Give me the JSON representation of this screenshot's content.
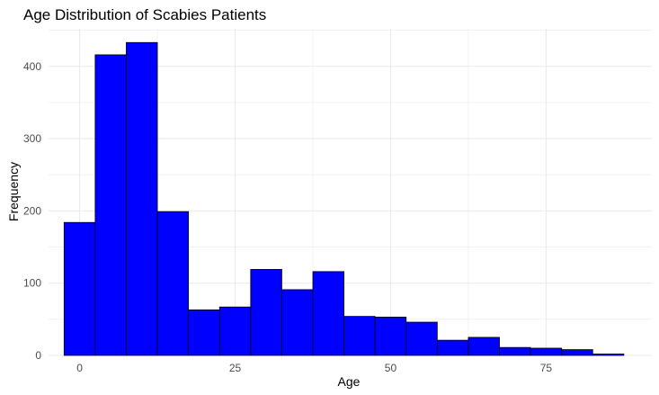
{
  "chart_data": {
    "type": "bar",
    "title": "Age Distribution of Scabies Patients",
    "xlabel": "Age",
    "ylabel": "Frequency",
    "xlim": [
      -5,
      92
    ],
    "ylim": [
      0,
      452
    ],
    "x_ticks": [
      0,
      25,
      50,
      75
    ],
    "y_ticks": [
      0,
      100,
      200,
      300,
      400
    ],
    "bin_width": 5,
    "bins": [
      {
        "start": -2.5,
        "end": 2.5,
        "count": 184
      },
      {
        "start": 2.5,
        "end": 7.5,
        "count": 416
      },
      {
        "start": 7.5,
        "end": 12.5,
        "count": 433
      },
      {
        "start": 12.5,
        "end": 17.5,
        "count": 199
      },
      {
        "start": 17.5,
        "end": 22.5,
        "count": 63
      },
      {
        "start": 22.5,
        "end": 27.5,
        "count": 67
      },
      {
        "start": 27.5,
        "end": 32.5,
        "count": 119
      },
      {
        "start": 32.5,
        "end": 37.5,
        "count": 91
      },
      {
        "start": 37.5,
        "end": 42.5,
        "count": 116
      },
      {
        "start": 42.5,
        "end": 47.5,
        "count": 54
      },
      {
        "start": 47.5,
        "end": 52.5,
        "count": 53
      },
      {
        "start": 52.5,
        "end": 57.5,
        "count": 46
      },
      {
        "start": 57.5,
        "end": 62.5,
        "count": 21
      },
      {
        "start": 62.5,
        "end": 67.5,
        "count": 25
      },
      {
        "start": 67.5,
        "end": 72.5,
        "count": 11
      },
      {
        "start": 72.5,
        "end": 77.5,
        "count": 10
      },
      {
        "start": 77.5,
        "end": 82.5,
        "count": 8
      },
      {
        "start": 82.5,
        "end": 87.5,
        "count": 2
      }
    ],
    "bar_fill": "#0000ff",
    "bar_outline": "#000000",
    "grid": true,
    "grid_color": "#ebebeb",
    "legend": "none"
  }
}
